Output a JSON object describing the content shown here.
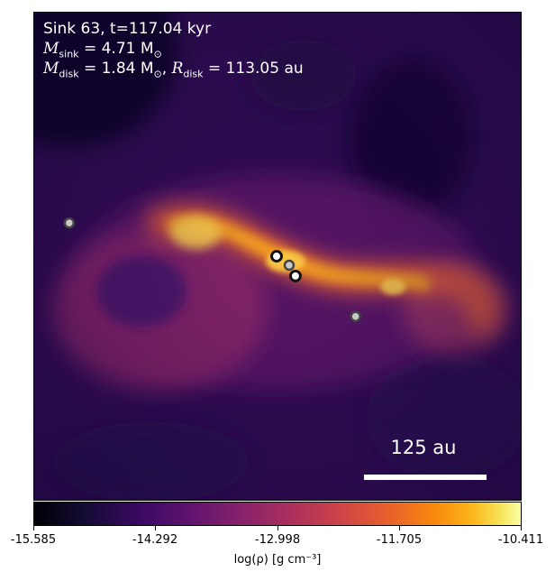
{
  "header": {
    "title": "Sink 63, t=117.04 kyr",
    "sink_mass_label": "M",
    "sink_mass_sub": "sink",
    "sink_mass_value": " = 4.71 M",
    "disk_mass_label": "M",
    "disk_mass_sub": "disk",
    "disk_mass_value": " = 1.84 M",
    "disk_radius_label": "R",
    "disk_radius_sub": "disk",
    "disk_radius_value": " = 113.05 au",
    "solar_symbol": "⊙"
  },
  "scalebar": {
    "label": "125 au"
  },
  "colorbar": {
    "title": "log(ρ) [g cm⁻³]",
    "ticks": [
      "-15.585",
      "-14.292",
      "-12.998",
      "-11.705",
      "-10.411"
    ],
    "colormap": "inferno-like"
  },
  "colors": {
    "background": "#2a0a4f",
    "void": "#06031a",
    "filament": "#f7a51e",
    "hot": "#ffd54a",
    "sink_fill_grey": "#c9c9c9",
    "sink_fill_white": "#ffffff"
  },
  "sinks": [
    {
      "id": "sink-left",
      "style": "grey"
    },
    {
      "id": "sink-upper",
      "style": "white"
    },
    {
      "id": "sink-center",
      "style": "grey"
    },
    {
      "id": "sink-main",
      "style": "white"
    },
    {
      "id": "sink-right",
      "style": "grey"
    }
  ]
}
